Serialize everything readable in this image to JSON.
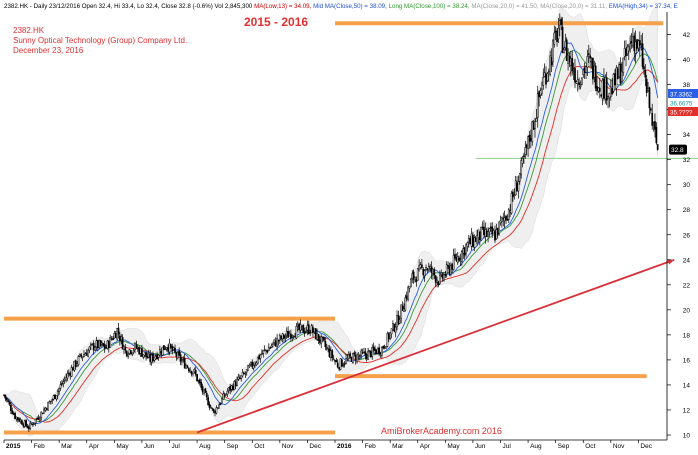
{
  "header": {
    "segments": [
      {
        "text": "2382.HK - Daily 23/12/2016 Open 32.4, Hi 33.4, Lo 32.4, Close 32.8 (-0.6%) Vol 2,845,300 ",
        "color": "#000000"
      },
      {
        "text": "MA(Low,13) = 34.09,",
        "color": "#cc0000"
      },
      {
        "text": " Mid MA(Close,50) = 38.09,",
        "color": "#1f4fd8"
      },
      {
        "text": " Long MA(Close,100) = 38.24,",
        "color": "#2f9a2f"
      },
      {
        "text": " MA(Close,20,0) = 41.50,",
        "color": "#9a9a9a"
      },
      {
        "text": " MA(Close,20,0) = 31.11,",
        "color": "#9a9a9a"
      },
      {
        "text": " EMA(High,34) = 37.34, E",
        "color": "#1f4fd8"
      }
    ]
  },
  "annotations": {
    "symbol": "2382.HK",
    "company": "Sunny Optical Technology (Group) Company Ltd.",
    "date": "December 23, 2016",
    "period": "2015 - 2016",
    "watermark": "AmiBrokerAcademy.com  2016"
  },
  "price_labels": {
    "blue": "37.3362",
    "teal": "36.6675",
    "red": "35.????",
    "close": "32.8"
  },
  "colors": {
    "candle": "#000000",
    "ma_red": "#e0302a",
    "ma_blue": "#2a5fe6",
    "ma_green": "#3a9a3a",
    "band": "#d9d9d9",
    "orange_line": "#f5a04a",
    "trendline": "#d9303a",
    "support_line": "#9bd39b",
    "annotation_text": "#e03030",
    "label_blue": "#2a5fe6",
    "label_teal": "#1a9a9a",
    "label_red": "#e0302a",
    "label_close": "#000000"
  },
  "chart_data": {
    "type": "candlestick",
    "y_axis": {
      "ticks": [
        10,
        12,
        14,
        16,
        18,
        20,
        22,
        24,
        26,
        28,
        30,
        32,
        34,
        36,
        38,
        40,
        42
      ],
      "range": [
        9.6,
        43.8
      ],
      "position": "right"
    },
    "x_axis": {
      "ticks": [
        "2015",
        "Feb",
        "Mar",
        "Apr",
        "May",
        "Jun",
        "Jul",
        "Aug",
        "Sep",
        "Oct",
        "Nov",
        "Dec",
        "2016",
        "Feb",
        "Mar",
        "Apr",
        "May",
        "Jun",
        "Jul",
        "Aug",
        "Sep",
        "Oct",
        "Nov",
        "Dec"
      ]
    },
    "close_path": [
      {
        "m": 0.0,
        "v": 13.2
      },
      {
        "m": 0.4,
        "v": 11.5
      },
      {
        "m": 0.9,
        "v": 10.6
      },
      {
        "m": 1.3,
        "v": 11.6
      },
      {
        "m": 1.8,
        "v": 13.0
      },
      {
        "m": 2.3,
        "v": 14.8
      },
      {
        "m": 2.8,
        "v": 16.3
      },
      {
        "m": 3.3,
        "v": 17.2
      },
      {
        "m": 3.7,
        "v": 17.0
      },
      {
        "m": 4.1,
        "v": 18.4
      },
      {
        "m": 4.4,
        "v": 16.7
      },
      {
        "m": 4.8,
        "v": 17.0
      },
      {
        "m": 5.3,
        "v": 16.0
      },
      {
        "m": 5.9,
        "v": 17.2
      },
      {
        "m": 6.4,
        "v": 16.0
      },
      {
        "m": 6.9,
        "v": 15.0
      },
      {
        "m": 7.2,
        "v": 13.5
      },
      {
        "m": 7.6,
        "v": 11.8
      },
      {
        "m": 8.1,
        "v": 13.5
      },
      {
        "m": 8.7,
        "v": 14.8
      },
      {
        "m": 9.3,
        "v": 16.4
      },
      {
        "m": 9.9,
        "v": 17.5
      },
      {
        "m": 10.5,
        "v": 18.3
      },
      {
        "m": 11.1,
        "v": 18.5
      },
      {
        "m": 11.6,
        "v": 17.2
      },
      {
        "m": 12.1,
        "v": 15.6
      },
      {
        "m": 12.6,
        "v": 16.2
      },
      {
        "m": 13.1,
        "v": 16.4
      },
      {
        "m": 13.7,
        "v": 16.9
      },
      {
        "m": 14.3,
        "v": 19.3
      },
      {
        "m": 14.8,
        "v": 22.5
      },
      {
        "m": 15.3,
        "v": 23.5
      },
      {
        "m": 15.8,
        "v": 22.3
      },
      {
        "m": 16.3,
        "v": 23.8
      },
      {
        "m": 16.8,
        "v": 25.2
      },
      {
        "m": 17.3,
        "v": 26.0
      },
      {
        "m": 17.8,
        "v": 26.0
      },
      {
        "m": 18.3,
        "v": 28.0
      },
      {
        "m": 18.8,
        "v": 31.5
      },
      {
        "m": 19.2,
        "v": 35.0
      },
      {
        "m": 19.5,
        "v": 38.0
      },
      {
        "m": 19.8,
        "v": 40.0
      },
      {
        "m": 20.1,
        "v": 42.5
      },
      {
        "m": 20.4,
        "v": 40.5
      },
      {
        "m": 20.8,
        "v": 38.5
      },
      {
        "m": 21.2,
        "v": 39.8
      },
      {
        "m": 21.6,
        "v": 38.0
      },
      {
        "m": 22.0,
        "v": 37.5
      },
      {
        "m": 22.4,
        "v": 39.3
      },
      {
        "m": 22.8,
        "v": 41.8
      },
      {
        "m": 23.1,
        "v": 40.5
      },
      {
        "m": 23.3,
        "v": 37.5
      },
      {
        "m": 23.5,
        "v": 35.0
      },
      {
        "m": 23.7,
        "v": 32.8
      }
    ],
    "horizontal_lines": [
      {
        "name": "resistance-2016-high",
        "value": 42.9,
        "from": 12.0,
        "to": 23.9,
        "color": "#f5a04a"
      },
      {
        "name": "resistance-2015-high",
        "value": 19.3,
        "from": 0.0,
        "to": 12.0,
        "color": "#f5a04a"
      },
      {
        "name": "support-2016-low",
        "value": 14.7,
        "from": 12.0,
        "to": 23.3,
        "color": "#f5a04a"
      },
      {
        "name": "support-2015-low",
        "value": 10.2,
        "from": 0.0,
        "to": 12.0,
        "color": "#f5a04a"
      },
      {
        "name": "support-32",
        "value": 32.1,
        "from": 17.1,
        "to": 25.2,
        "color": "#9bd39b"
      }
    ],
    "trendline": {
      "from": {
        "m": 7.0,
        "v": 10.2
      },
      "to": {
        "m": 24.3,
        "v": 24.0
      }
    }
  }
}
